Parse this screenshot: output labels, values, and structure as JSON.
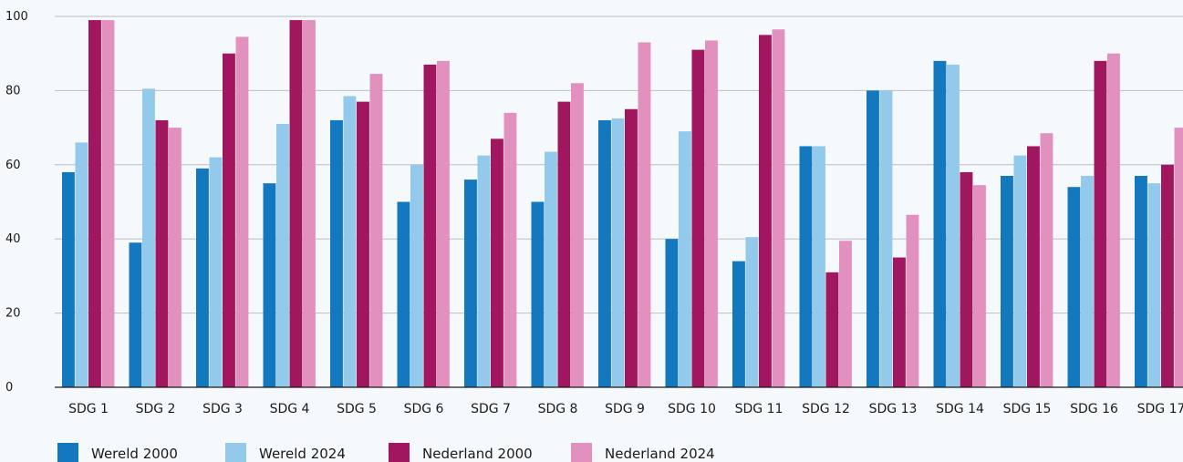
{
  "chart_data": {
    "type": "bar",
    "title": "",
    "xlabel": "",
    "ylabel": "",
    "ylim": [
      0,
      100
    ],
    "yticks": [
      0,
      20,
      40,
      60,
      80,
      100
    ],
    "grid": true,
    "legend_position": "bottom-left",
    "categories": [
      "SDG 1",
      "SDG 2",
      "SDG 3",
      "SDG 4",
      "SDG 5",
      "SDG 6",
      "SDG 7",
      "SDG 8",
      "SDG 9",
      "SDG 10",
      "SDG 11",
      "SDG 12",
      "SDG 13",
      "SDG 14",
      "SDG 15",
      "SDG 16",
      "SDG 17"
    ],
    "series": [
      {
        "name": "Wereld 2000",
        "color": "#1478be",
        "values": [
          58,
          39,
          59,
          55,
          72,
          50,
          56,
          50,
          72,
          40,
          34,
          65,
          80,
          88,
          57,
          54,
          57
        ]
      },
      {
        "name": "Wereld 2024",
        "color": "#93c9ea",
        "values": [
          66,
          80.5,
          62,
          71,
          78.5,
          60,
          62.5,
          63.5,
          72.5,
          69,
          40.5,
          65,
          80,
          87,
          62.5,
          57,
          55
        ]
      },
      {
        "name": "Nederland 2000",
        "color": "#a1175f",
        "values": [
          99,
          72,
          90,
          99,
          77,
          87,
          67,
          77,
          75,
          91,
          95,
          31,
          35,
          58,
          65,
          88,
          60
        ]
      },
      {
        "name": "Nederland 2024",
        "color": "#e291bf",
        "values": [
          99,
          70,
          94.5,
          99,
          84.5,
          88,
          74,
          82,
          93,
          93.5,
          96.5,
          39.5,
          46.5,
          54.5,
          68.5,
          90,
          70
        ]
      }
    ]
  }
}
